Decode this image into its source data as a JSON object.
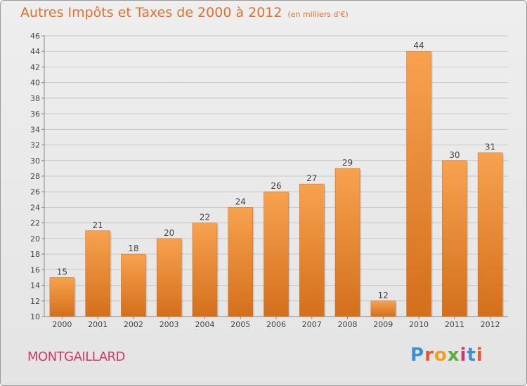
{
  "header": {
    "title": "Autres Impôts et Taxes de 2000 à 2012",
    "unit": "(en milliers d'€)"
  },
  "footer": {
    "town": "MONTGAILLARD",
    "logo_letters": [
      "P",
      "r",
      "o",
      "x",
      "i",
      "t",
      "i"
    ],
    "logo_colors": [
      "#3b8fd4",
      "#e9552f",
      "#f0a020",
      "#5aae3a",
      "#d9316e",
      "#3b8fd4",
      "#e9552f"
    ]
  },
  "chart_data": {
    "type": "bar",
    "title": "Autres Impôts et Taxes de 2000 à 2012",
    "subtitle": "(en milliers d'€)",
    "xlabel": "",
    "ylabel": "",
    "categories": [
      "2000",
      "2001",
      "2002",
      "2003",
      "2004",
      "2005",
      "2006",
      "2007",
      "2008",
      "2009",
      "2010",
      "2011",
      "2012"
    ],
    "values": [
      15,
      21,
      18,
      20,
      22,
      24,
      26,
      27,
      29,
      12,
      44,
      30,
      31
    ],
    "ylim": [
      10,
      46
    ],
    "ytick_step": 2,
    "grid": true,
    "bar_color": "#f0882e",
    "bar_color_dark": "#d06f1e"
  }
}
